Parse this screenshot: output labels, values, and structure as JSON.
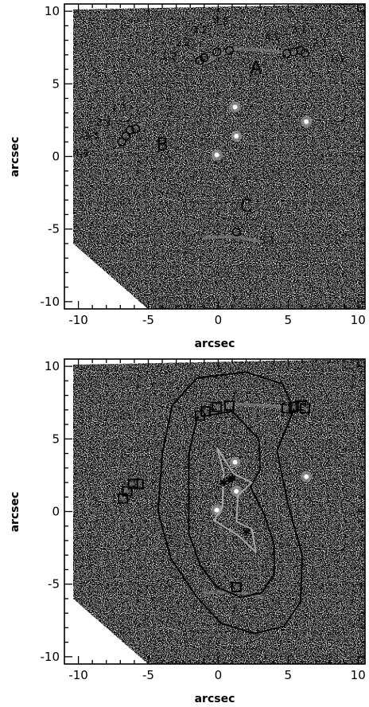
{
  "figure": {
    "panels": [
      {
        "id": "top",
        "xlabel": "arcsec",
        "ylabel": "arcsec",
        "xticks": [
          "-10",
          "-5",
          "0",
          "5",
          "10"
        ],
        "yticks": [
          "10",
          "5",
          "0",
          "-5",
          "-10"
        ],
        "xlim": [
          -11,
          10.5
        ],
        "ylim": [
          -10.5,
          10.5
        ],
        "group_labels": [
          {
            "text": "A",
            "x": 2.7,
            "y": 5.7
          },
          {
            "text": "B",
            "x": -4.0,
            "y": 0.4
          },
          {
            "text": "C",
            "x": 2.0,
            "y": -3.8
          }
        ],
        "image_labels": [
          {
            "text": "4.2",
            "x": 0.2,
            "y": 9.1
          },
          {
            "text": "3.2",
            "x": -1.3,
            "y": 8.5
          },
          {
            "text": "2.2",
            "x": -2.5,
            "y": 7.6
          },
          {
            "text": "1.2",
            "x": -3.5,
            "y": 6.7
          },
          {
            "text": "4.1",
            "x": 3.9,
            "y": 8.0
          },
          {
            "text": "3.1",
            "x": 5.8,
            "y": 8.5
          },
          {
            "text": "2.1",
            "x": 7.3,
            "y": 7.6
          },
          {
            "text": "1.1",
            "x": 8.5,
            "y": 6.5
          },
          {
            "text": "1.3",
            "x": -7.1,
            "y": 3.1
          },
          {
            "text": "2.3",
            "x": -8.2,
            "y": 2.1
          },
          {
            "text": "3.3",
            "x": -9.1,
            "y": 1.2
          },
          {
            "text": "4.3",
            "x": -9.8,
            "y": 0.0
          },
          {
            "text": "5.1",
            "x": 3.5,
            "y": -6.0
          }
        ],
        "markers": [
          {
            "x": -1.3,
            "y": 6.6
          },
          {
            "x": -1.0,
            "y": 6.8
          },
          {
            "x": -0.1,
            "y": 7.2
          },
          {
            "x": 0.8,
            "y": 7.3
          },
          {
            "x": 4.9,
            "y": 7.1
          },
          {
            "x": 5.4,
            "y": 7.2
          },
          {
            "x": 5.9,
            "y": 7.3
          },
          {
            "x": 6.2,
            "y": 7.1
          },
          {
            "x": -5.9,
            "y": 1.9
          },
          {
            "x": -6.3,
            "y": 1.8
          },
          {
            "x": -6.6,
            "y": 1.4
          },
          {
            "x": -6.9,
            "y": 1.0
          },
          {
            "x": 1.3,
            "y": -5.2
          }
        ],
        "galaxies": [
          {
            "x": 1.2,
            "y": 3.4
          },
          {
            "x": 1.3,
            "y": 1.4
          },
          {
            "x": -0.1,
            "y": 0.1
          },
          {
            "x": 6.3,
            "y": 2.4
          }
        ]
      },
      {
        "id": "bottom",
        "xlabel": "arcsec",
        "ylabel": "arcsec",
        "xticks": [
          "-10",
          "-5",
          "0",
          "5",
          "10"
        ],
        "yticks": [
          "10",
          "5",
          "0",
          "-5",
          "-10"
        ],
        "xlim": [
          -11,
          10.5
        ],
        "ylim": [
          -10.5,
          10.5
        ],
        "markers": [
          {
            "x": -1.3,
            "y": 6.6
          },
          {
            "x": -0.9,
            "y": 6.9
          },
          {
            "x": -0.1,
            "y": 7.2
          },
          {
            "x": 0.8,
            "y": 7.3
          },
          {
            "x": 4.9,
            "y": 7.1
          },
          {
            "x": 5.4,
            "y": 7.2
          },
          {
            "x": 5.9,
            "y": 7.3
          },
          {
            "x": 6.2,
            "y": 7.1
          },
          {
            "x": -5.7,
            "y": 1.9
          },
          {
            "x": -6.1,
            "y": 1.9
          },
          {
            "x": -6.5,
            "y": 1.4
          },
          {
            "x": -6.8,
            "y": 0.9
          },
          {
            "x": 1.3,
            "y": -5.2
          }
        ],
        "galaxies": [
          {
            "x": 1.2,
            "y": 3.4
          },
          {
            "x": 1.3,
            "y": 1.4
          },
          {
            "x": -0.1,
            "y": 0.1
          },
          {
            "x": 6.3,
            "y": 2.4
          }
        ],
        "outer_curve": [
          [
            -1.5,
            9.2
          ],
          [
            2.0,
            9.6
          ],
          [
            4.6,
            8.8
          ],
          [
            5.4,
            7.0
          ],
          [
            4.2,
            4.2
          ],
          [
            5.0,
            0.5
          ],
          [
            6.0,
            -3.0
          ],
          [
            5.9,
            -6.2
          ],
          [
            4.7,
            -7.9
          ],
          [
            2.6,
            -8.4
          ],
          [
            0.2,
            -7.7
          ],
          [
            -1.6,
            -5.8
          ],
          [
            -3.4,
            -3.2
          ],
          [
            -4.3,
            0.0
          ],
          [
            -4.0,
            4.0
          ],
          [
            -3.3,
            7.3
          ],
          [
            -1.5,
            9.2
          ]
        ],
        "inner_curve": [
          [
            -1.5,
            6.5
          ],
          [
            1.0,
            6.9
          ],
          [
            2.9,
            5.0
          ],
          [
            3.0,
            2.9
          ],
          [
            2.3,
            1.7
          ],
          [
            3.3,
            -0.2
          ],
          [
            4.0,
            -2.3
          ],
          [
            4.0,
            -4.3
          ],
          [
            3.1,
            -5.6
          ],
          [
            1.6,
            -5.9
          ],
          [
            -0.1,
            -5.2
          ],
          [
            -1.3,
            -3.7
          ],
          [
            -2.1,
            -1.5
          ],
          [
            -2.1,
            1.6
          ],
          [
            -2.1,
            4.0
          ],
          [
            -1.5,
            6.5
          ]
        ],
        "caustic": [
          [
            -0.1,
            4.4
          ],
          [
            1.1,
            2.6
          ],
          [
            2.4,
            2.0
          ],
          [
            1.4,
            1.1
          ],
          [
            1.3,
            -0.7
          ],
          [
            2.4,
            -1.2
          ],
          [
            2.7,
            -2.8
          ],
          [
            1.5,
            -1.7
          ],
          [
            -0.3,
            -0.6
          ],
          [
            0.3,
            0.3
          ],
          [
            0.4,
            2.7
          ],
          [
            -0.1,
            4.4
          ]
        ],
        "stars": [
          {
            "x": 0.4,
            "y": 2.0
          },
          {
            "x": 0.8,
            "y": 2.2
          },
          {
            "x": 1.0,
            "y": 2.3
          },
          {
            "x": 2.0,
            "y": -1.4
          }
        ]
      }
    ]
  }
}
